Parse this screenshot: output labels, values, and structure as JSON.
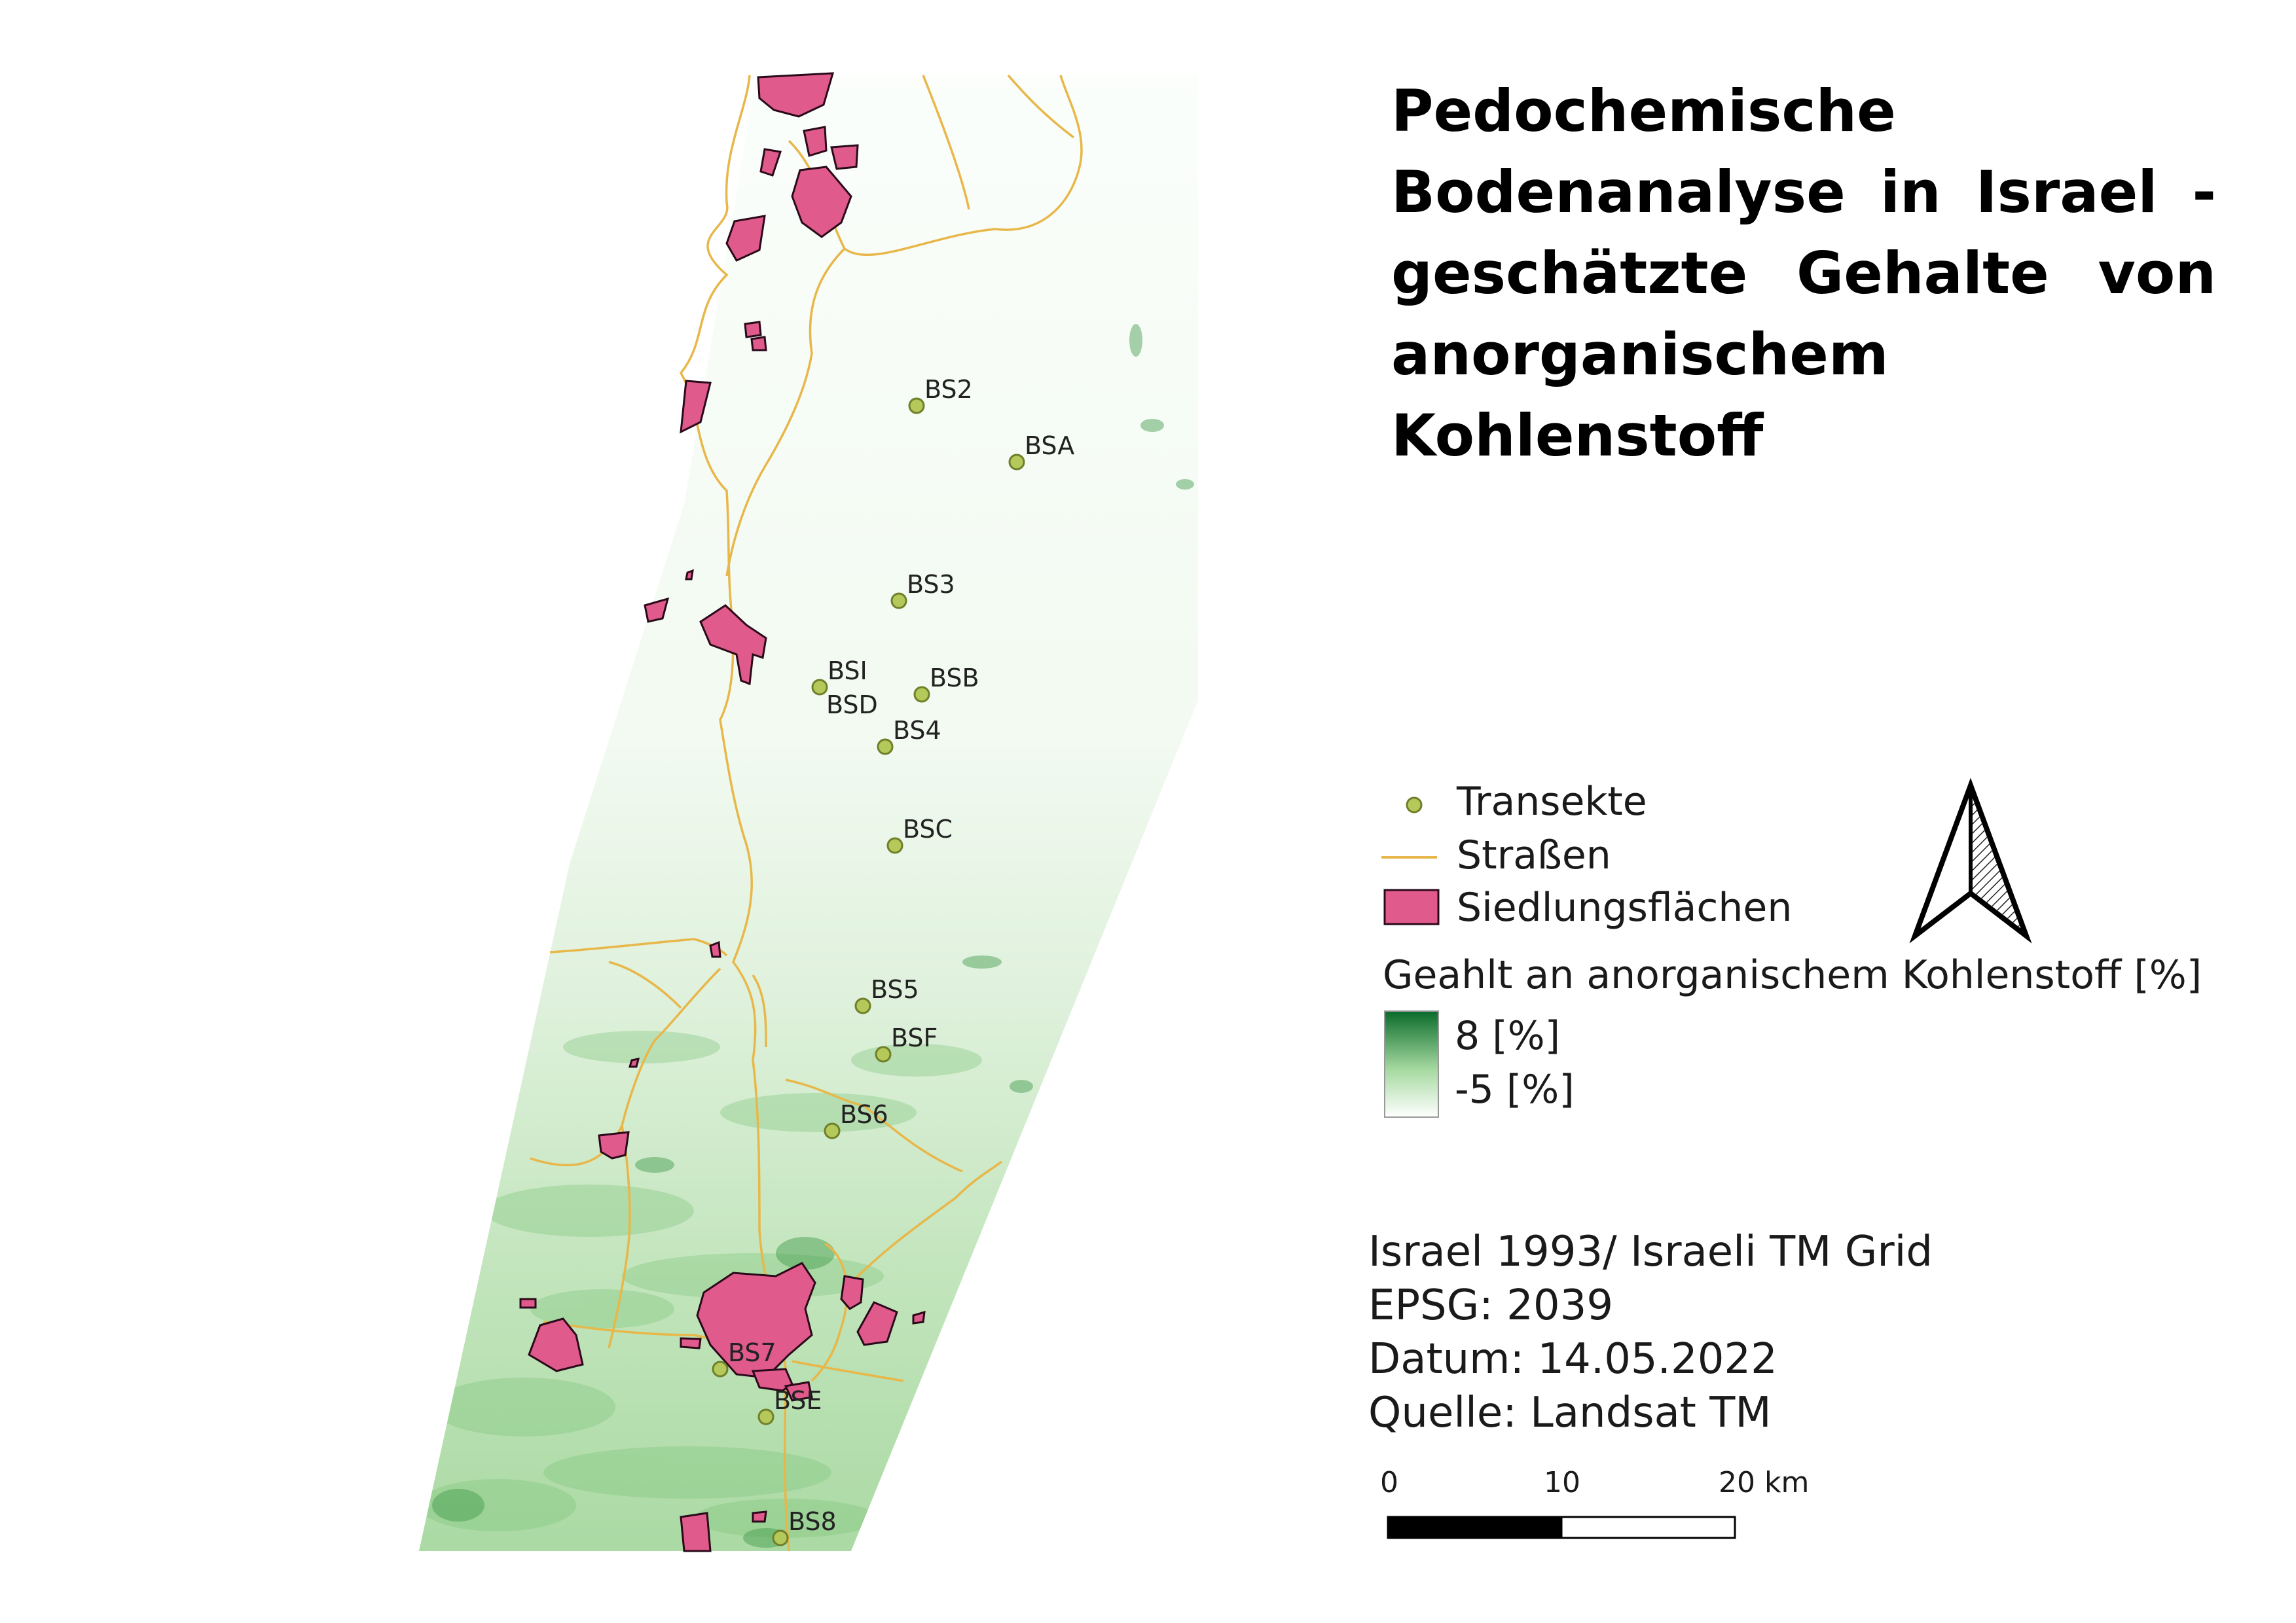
{
  "title": "Pedochemische Bodenanalyse in Israel - geschätzte Gehalte von anorganischem Kohlenstoff",
  "map": {
    "transects": [
      {
        "label": "BS2"
      },
      {
        "label": "BSA"
      },
      {
        "label": "BS3"
      },
      {
        "label": "BSI"
      },
      {
        "label": "BSD"
      },
      {
        "label": "BSB"
      },
      {
        "label": "BS4"
      },
      {
        "label": "BSC"
      },
      {
        "label": "BS5"
      },
      {
        "label": "BSF"
      },
      {
        "label": "BS6"
      },
      {
        "label": "BS7"
      },
      {
        "label": "BSE"
      },
      {
        "label": "BS8"
      }
    ]
  },
  "legend": {
    "transects_label": "Transekte",
    "roads_label": "Straßen",
    "settlements_label": "Siedlungsflächen",
    "raster_title": "Geahlt an anorganischem Kohlenstoff [%]",
    "raster_max": "8 [%]",
    "raster_min": "-5 [%]"
  },
  "info": {
    "crs": "Israel 1993/ Israeli TM Grid",
    "epsg": "EPSG: 2039",
    "date": "Datum: 14.05.2022",
    "source": "Quelle: Landsat TM"
  },
  "scalebar": {
    "tick_0": "0",
    "tick_10": "10",
    "tick_20": "20 km"
  },
  "colors": {
    "transect_point": "#b5c95a",
    "road": "#e8b74a",
    "settlement": "#e05a8c",
    "raster_high": "#0a6b2a",
    "raster_low": "#ffffff"
  }
}
